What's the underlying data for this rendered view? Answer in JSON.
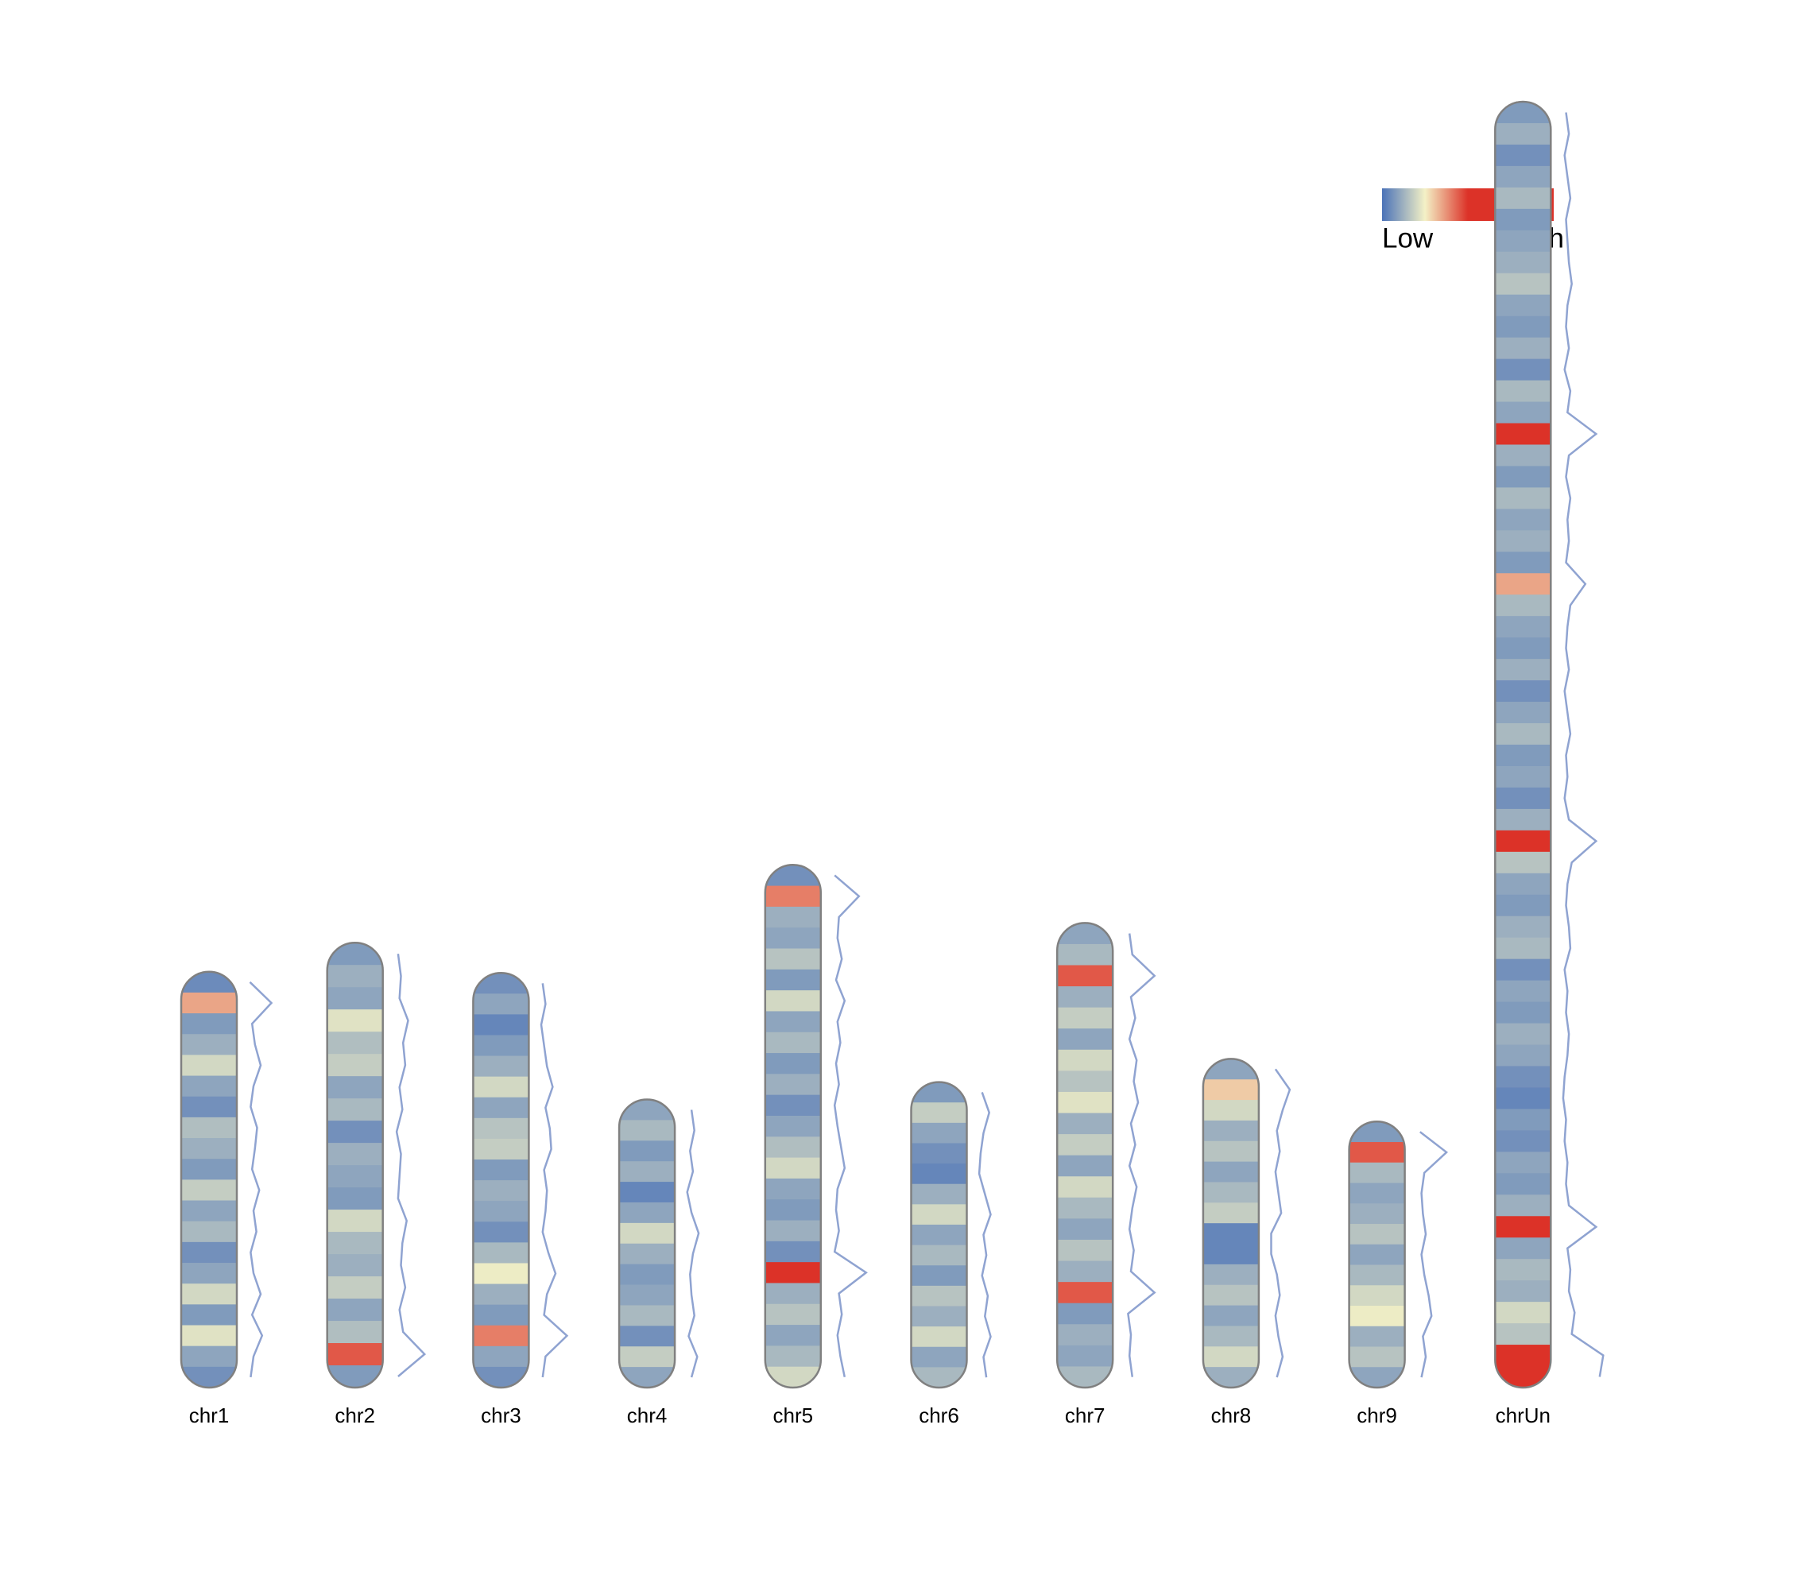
{
  "chart_data": {
    "type": "ideogram",
    "colorscale": [
      "#4a72b8",
      "#f4f1c6",
      "#dc3228",
      "#dc3228",
      "#dc3228"
    ],
    "clim": [
      0,
      1
    ],
    "ylim": [
      0,
      1107
    ],
    "legend_labels": [
      "Low",
      "High"
    ],
    "line_color": "#8fa3d1",
    "outline_color": "#808080",
    "chromosomes": [
      {
        "name": "chr1",
        "length": 358,
        "density": [
          0.05,
          0.35,
          0.08,
          0.12,
          0.2,
          0.1,
          0.06,
          0.15,
          0.12,
          0.08,
          0.18,
          0.1,
          0.14,
          0.06,
          0.1,
          0.2,
          0.08,
          0.22,
          0.1,
          0.06
        ]
      },
      {
        "name": "chr2",
        "length": 383,
        "density": [
          0.08,
          0.12,
          0.1,
          0.22,
          0.15,
          0.18,
          0.1,
          0.14,
          0.06,
          0.12,
          0.1,
          0.08,
          0.2,
          0.14,
          0.12,
          0.18,
          0.1,
          0.15,
          0.45,
          0.08
        ]
      },
      {
        "name": "chr3",
        "length": 357,
        "density": [
          0.06,
          0.1,
          0.04,
          0.08,
          0.12,
          0.2,
          0.1,
          0.16,
          0.18,
          0.08,
          0.12,
          0.1,
          0.06,
          0.14,
          0.24,
          0.12,
          0.08,
          0.4,
          0.1,
          0.06
        ]
      },
      {
        "name": "chr4",
        "length": 248,
        "density": [
          0.1,
          0.14,
          0.08,
          0.12,
          0.04,
          0.1,
          0.2,
          0.12,
          0.08,
          0.1,
          0.14,
          0.06,
          0.18,
          0.1
        ]
      },
      {
        "name": "chr5",
        "length": 450,
        "density": [
          0.06,
          0.4,
          0.12,
          0.1,
          0.16,
          0.08,
          0.2,
          0.1,
          0.14,
          0.08,
          0.12,
          0.06,
          0.1,
          0.15,
          0.2,
          0.1,
          0.08,
          0.12,
          0.06,
          0.5,
          0.12,
          0.16,
          0.1,
          0.14,
          0.2
        ]
      },
      {
        "name": "chr6",
        "length": 263,
        "density": [
          0.08,
          0.18,
          0.1,
          0.06,
          0.04,
          0.12,
          0.2,
          0.1,
          0.14,
          0.08,
          0.16,
          0.12,
          0.2,
          0.1,
          0.14
        ]
      },
      {
        "name": "chr7",
        "length": 400,
        "density": [
          0.1,
          0.14,
          0.45,
          0.12,
          0.18,
          0.1,
          0.2,
          0.16,
          0.22,
          0.12,
          0.18,
          0.1,
          0.2,
          0.14,
          0.1,
          0.16,
          0.12,
          0.45,
          0.08,
          0.12,
          0.1,
          0.14
        ]
      },
      {
        "name": "chr8",
        "length": 283,
        "density": [
          0.1,
          0.3,
          0.2,
          0.12,
          0.16,
          0.1,
          0.14,
          0.18,
          0.04,
          0.04,
          0.12,
          0.16,
          0.1,
          0.14,
          0.2,
          0.12
        ]
      },
      {
        "name": "chr9",
        "length": 229,
        "density": [
          0.08,
          0.45,
          0.14,
          0.1,
          0.12,
          0.16,
          0.1,
          0.14,
          0.2,
          0.24,
          0.12,
          0.16,
          0.1
        ]
      },
      {
        "name": "chrUn",
        "length": 1107,
        "density": [
          0.08,
          0.12,
          0.06,
          0.1,
          0.14,
          0.08,
          0.1,
          0.12,
          0.16,
          0.1,
          0.08,
          0.12,
          0.06,
          0.14,
          0.1,
          0.5,
          0.12,
          0.08,
          0.14,
          0.1,
          0.12,
          0.08,
          0.35,
          0.14,
          0.1,
          0.08,
          0.12,
          0.06,
          0.1,
          0.14,
          0.08,
          0.1,
          0.06,
          0.12,
          0.5,
          0.16,
          0.1,
          0.08,
          0.12,
          0.14,
          0.06,
          0.1,
          0.08,
          0.12,
          0.1,
          0.06,
          0.04,
          0.08,
          0.06,
          0.1,
          0.08,
          0.12,
          0.5,
          0.1,
          0.14,
          0.12,
          0.2,
          0.16,
          0.6,
          0.55
        ]
      }
    ]
  }
}
